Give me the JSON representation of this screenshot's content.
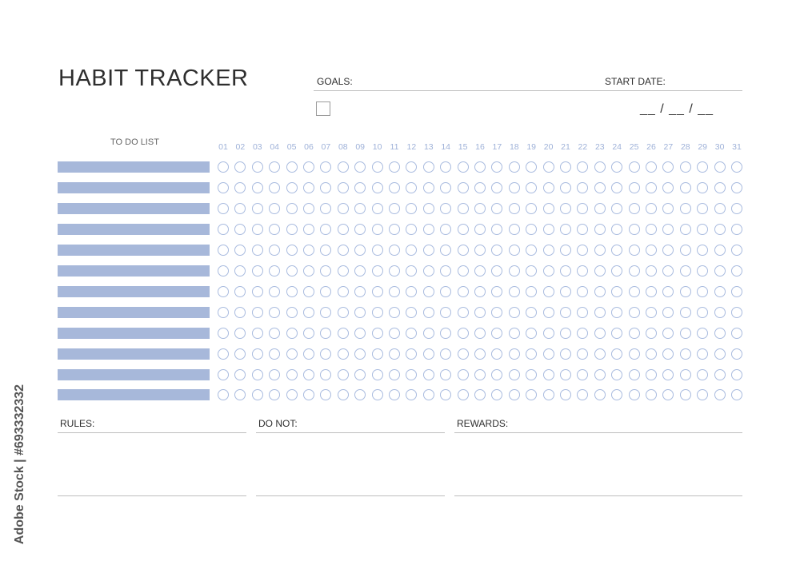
{
  "title": "HABIT TRACKER",
  "goals_label": "GOALS:",
  "start_date_label": "START DATE:",
  "start_date_value": "__ / __ / __",
  "todo_header": "TO DO LIST",
  "days": [
    "01",
    "02",
    "03",
    "04",
    "05",
    "06",
    "07",
    "08",
    "09",
    "10",
    "11",
    "12",
    "13",
    "14",
    "15",
    "16",
    "17",
    "18",
    "19",
    "20",
    "21",
    "22",
    "23",
    "24",
    "25",
    "26",
    "27",
    "28",
    "29",
    "30",
    "31"
  ],
  "habit_rows": 12,
  "footer": {
    "rules_label": "RULES:",
    "do_not_label": "DO NOT:",
    "rewards_label": "REWARDS:"
  },
  "watermark": "Adobe Stock | #693332332",
  "colors": {
    "bar": "#a7b8da",
    "circle": "#a9bbdf",
    "day_number": "#9eb1d8"
  }
}
